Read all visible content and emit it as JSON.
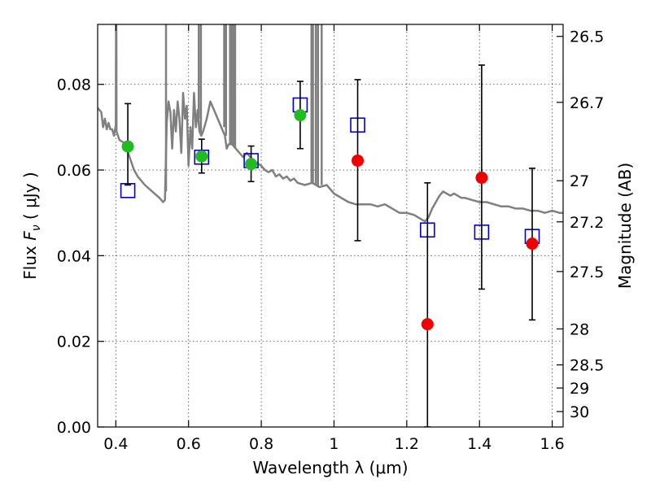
{
  "chart_data": {
    "type": "scatter",
    "xlabel": "Wavelength  λ (μm)",
    "ylabel": "Flux  F_ν  ( μJy )",
    "ylabel_parts": {
      "prefix": "Flux ",
      "symbol": "F",
      "subscript": "ν",
      "suffix": " ( μJy )"
    },
    "y2label": "Magnitude (AB)",
    "xlim": [
      0.35,
      1.63
    ],
    "ylim": [
      0.0,
      0.094
    ],
    "x_ticks": [
      0.4,
      0.6,
      0.8,
      1.0,
      1.2,
      1.4,
      1.6
    ],
    "x_tick_labels": [
      "0.4",
      "0.6",
      "0.8",
      "1",
      "1.2",
      "1.4",
      "1.6"
    ],
    "y_ticks": [
      0.0,
      0.02,
      0.04,
      0.06,
      0.08
    ],
    "y_tick_labels": [
      "0.00",
      "0.02",
      "0.04",
      "0.06",
      "0.08"
    ],
    "y2_ticks": [
      {
        "label": "26.5",
        "flux": 0.0912
      },
      {
        "label": "26.7",
        "flux": 0.0758
      },
      {
        "label": "27",
        "flux": 0.0575
      },
      {
        "label": "27.2",
        "flux": 0.0479
      },
      {
        "label": "27.5",
        "flux": 0.0363
      },
      {
        "label": "28",
        "flux": 0.0229
      },
      {
        "label": "28.5",
        "flux": 0.0145
      },
      {
        "label": "29",
        "flux": 0.0091
      },
      {
        "label": "30",
        "flux": 0.0036
      }
    ],
    "grid": true,
    "series": [
      {
        "kind": "line",
        "color": "#808080",
        "points": [
          [
            0.35,
            0.0745
          ],
          [
            0.36,
            0.0735
          ],
          [
            0.365,
            0.07
          ],
          [
            0.37,
            0.072
          ],
          [
            0.375,
            0.0695
          ],
          [
            0.38,
            0.071
          ],
          [
            0.385,
            0.0695
          ],
          [
            0.39,
            0.0695
          ],
          [
            0.395,
            0.068
          ],
          [
            0.4,
            0.0705
          ],
          [
            0.4005,
            0.094
          ],
          [
            0.4015,
            0.094
          ],
          [
            0.402,
            0.069
          ],
          [
            0.41,
            0.067
          ],
          [
            0.42,
            0.0665
          ],
          [
            0.43,
            0.065
          ],
          [
            0.44,
            0.0625
          ],
          [
            0.45,
            0.06
          ],
          [
            0.46,
            0.0585
          ],
          [
            0.48,
            0.0565
          ],
          [
            0.5,
            0.055
          ],
          [
            0.52,
            0.0535
          ],
          [
            0.53,
            0.0525
          ],
          [
            0.535,
            0.053
          ],
          [
            0.54,
            0.071
          ],
          [
            0.545,
            0.076
          ],
          [
            0.55,
            0.0735
          ],
          [
            0.555,
            0.065
          ],
          [
            0.56,
            0.074
          ],
          [
            0.565,
            0.069
          ],
          [
            0.57,
            0.076
          ],
          [
            0.575,
            0.072
          ],
          [
            0.58,
            0.064
          ],
          [
            0.585,
            0.078
          ],
          [
            0.59,
            0.072
          ],
          [
            0.595,
            0.075
          ],
          [
            0.6,
            0.061
          ],
          [
            0.605,
            0.07
          ],
          [
            0.61,
            0.065
          ],
          [
            0.615,
            0.078
          ],
          [
            0.62,
            0.07
          ],
          [
            0.625,
            0.074
          ],
          [
            0.63,
            0.069
          ],
          [
            0.635,
            0.068
          ],
          [
            0.64,
            0.069
          ],
          [
            0.65,
            0.072
          ],
          [
            0.66,
            0.076
          ],
          [
            0.67,
            0.074
          ],
          [
            0.68,
            0.072
          ],
          [
            0.69,
            0.07
          ],
          [
            0.7,
            0.068
          ],
          [
            0.705,
            0.065
          ],
          [
            0.71,
            0.066
          ],
          [
            0.72,
            0.066
          ],
          [
            0.73,
            0.065
          ],
          [
            0.74,
            0.064
          ],
          [
            0.75,
            0.063
          ],
          [
            0.76,
            0.064
          ],
          [
            0.77,
            0.063
          ],
          [
            0.78,
            0.062
          ],
          [
            0.79,
            0.0615
          ],
          [
            0.8,
            0.061
          ],
          [
            0.81,
            0.06
          ],
          [
            0.82,
            0.0595
          ],
          [
            0.83,
            0.06
          ],
          [
            0.84,
            0.0585
          ],
          [
            0.85,
            0.059
          ],
          [
            0.86,
            0.058
          ],
          [
            0.87,
            0.0585
          ],
          [
            0.88,
            0.0575
          ],
          [
            0.89,
            0.058
          ],
          [
            0.9,
            0.057
          ],
          [
            0.92,
            0.0565
          ],
          [
            0.94,
            0.057
          ],
          [
            0.96,
            0.056
          ],
          [
            0.98,
            0.0565
          ],
          [
            1.0,
            0.0545
          ],
          [
            1.02,
            0.0535
          ],
          [
            1.04,
            0.0525
          ],
          [
            1.06,
            0.052
          ],
          [
            1.08,
            0.052
          ],
          [
            1.1,
            0.052
          ],
          [
            1.12,
            0.0515
          ],
          [
            1.14,
            0.052
          ],
          [
            1.16,
            0.051
          ],
          [
            1.18,
            0.05
          ],
          [
            1.2,
            0.05
          ],
          [
            1.22,
            0.0495
          ],
          [
            1.24,
            0.0485
          ],
          [
            1.25,
            0.048
          ],
          [
            1.26,
            0.049
          ],
          [
            1.27,
            0.051
          ],
          [
            1.28,
            0.0525
          ],
          [
            1.29,
            0.054
          ],
          [
            1.3,
            0.055
          ],
          [
            1.31,
            0.0545
          ],
          [
            1.32,
            0.054
          ],
          [
            1.33,
            0.0545
          ],
          [
            1.34,
            0.054
          ],
          [
            1.35,
            0.0535
          ],
          [
            1.36,
            0.0535
          ],
          [
            1.38,
            0.053
          ],
          [
            1.4,
            0.0525
          ],
          [
            1.42,
            0.0525
          ],
          [
            1.44,
            0.052
          ],
          [
            1.46,
            0.0515
          ],
          [
            1.48,
            0.0515
          ],
          [
            1.5,
            0.051
          ],
          [
            1.52,
            0.051
          ],
          [
            1.54,
            0.0505
          ],
          [
            1.56,
            0.0505
          ],
          [
            1.58,
            0.05
          ],
          [
            1.6,
            0.0505
          ],
          [
            1.62,
            0.05
          ],
          [
            1.63,
            0.05
          ]
        ],
        "spikes": [
          [
            0.538,
            0.055
          ],
          [
            0.628,
            0.072
          ],
          [
            0.634,
            0.068
          ],
          [
            0.698,
            0.07
          ],
          [
            0.703,
            0.068
          ],
          [
            0.714,
            0.066
          ],
          [
            0.719,
            0.066
          ],
          [
            0.724,
            0.0655
          ],
          [
            0.728,
            0.065
          ],
          [
            0.938,
            0.057
          ],
          [
            0.942,
            0.057
          ],
          [
            0.95,
            0.0565
          ],
          [
            0.956,
            0.056
          ],
          [
            0.966,
            0.0565
          ]
        ]
      },
      {
        "kind": "markers",
        "marker": "open-square",
        "color": "#0000cc",
        "points": [
          [
            0.433,
            0.0552
          ],
          [
            0.636,
            0.063
          ],
          [
            0.772,
            0.0622
          ],
          [
            0.907,
            0.0752
          ],
          [
            1.065,
            0.0705
          ],
          [
            1.257,
            0.046
          ],
          [
            1.406,
            0.0455
          ],
          [
            1.545,
            0.0445
          ]
        ]
      },
      {
        "kind": "markers",
        "marker": "filled-circle",
        "color": "#22bb22",
        "points": [
          [
            0.433,
            0.0655
          ],
          [
            0.636,
            0.0632
          ],
          [
            0.772,
            0.0614
          ],
          [
            0.907,
            0.0728
          ]
        ],
        "errors": [
          [
            0.0565,
            0.0755
          ],
          [
            0.0593,
            0.0672
          ],
          [
            0.0573,
            0.0656
          ],
          [
            0.065,
            0.0807
          ]
        ]
      },
      {
        "kind": "markers",
        "marker": "filled-circle",
        "color": "#ee0000",
        "points": [
          [
            1.065,
            0.0622
          ],
          [
            1.257,
            0.024
          ],
          [
            1.406,
            0.0582
          ],
          [
            1.545,
            0.0428
          ]
        ],
        "errors": [
          [
            0.0435,
            0.0811
          ],
          [
            0.0,
            0.057
          ],
          [
            0.0322,
            0.0845
          ],
          [
            0.025,
            0.0604
          ]
        ]
      }
    ]
  }
}
